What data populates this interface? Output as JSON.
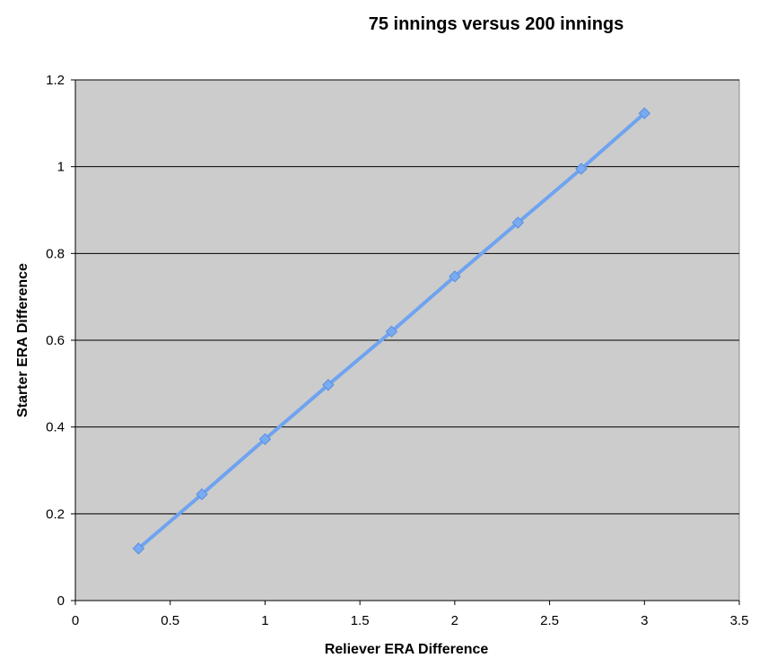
{
  "chart_data": {
    "type": "line",
    "title": "75 innings versus 200 innings",
    "xlabel": "Reliever ERA Difference",
    "ylabel": "Starter ERA Difference",
    "xlim": [
      0,
      3.5
    ],
    "ylim": [
      0,
      1.2
    ],
    "x_ticks": [
      "0",
      "0.5",
      "1",
      "1.5",
      "2",
      "2.5",
      "3",
      "3.5"
    ],
    "y_ticks": [
      "0",
      "0.2",
      "0.4",
      "0.6",
      "0.8",
      "1",
      "1.2"
    ],
    "grid": "horizontal major gridlines",
    "legend": "none",
    "colors": {
      "plot_area": "#cccccc",
      "series": "#6fa3f0",
      "marker": "#79aaf2",
      "gridline": "#000000"
    },
    "series": [
      {
        "x": [
          0.333,
          0.667,
          1.0,
          1.333,
          1.667,
          2.0,
          2.333,
          2.667,
          3.0
        ],
        "y": [
          0.12,
          0.245,
          0.372,
          0.497,
          0.62,
          0.747,
          0.871,
          0.995,
          1.123
        ]
      }
    ]
  }
}
